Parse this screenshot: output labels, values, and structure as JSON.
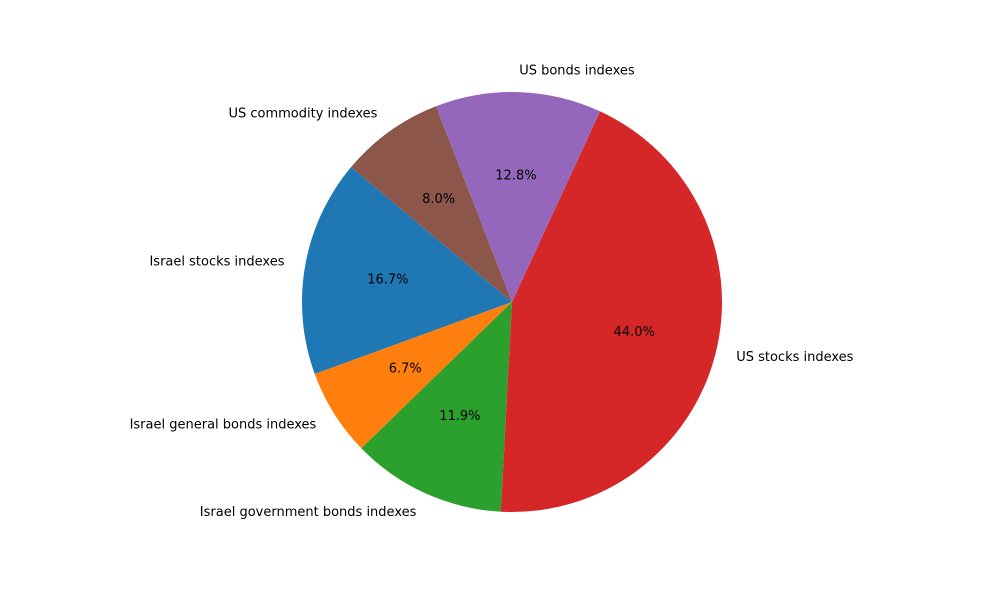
{
  "chart_data": {
    "type": "pie",
    "labels": [
      "Israel stocks indexes",
      "Israel general bonds indexes",
      "Israel government bonds indexes",
      "US stocks indexes",
      "US bonds indexes",
      "US commodity indexes"
    ],
    "values": [
      16.7,
      6.7,
      11.9,
      44.0,
      12.8,
      8.0
    ],
    "value_labels": [
      "16.7%",
      "6.7%",
      "11.9%",
      "44.0%",
      "12.8%",
      "8.0%"
    ],
    "colors": [
      "#1f77b4",
      "#ff7f0e",
      "#2ca02c",
      "#d62728",
      "#9467bd",
      "#8c564b"
    ],
    "start_angle_deg": 140,
    "direction": "counterclockwise"
  }
}
